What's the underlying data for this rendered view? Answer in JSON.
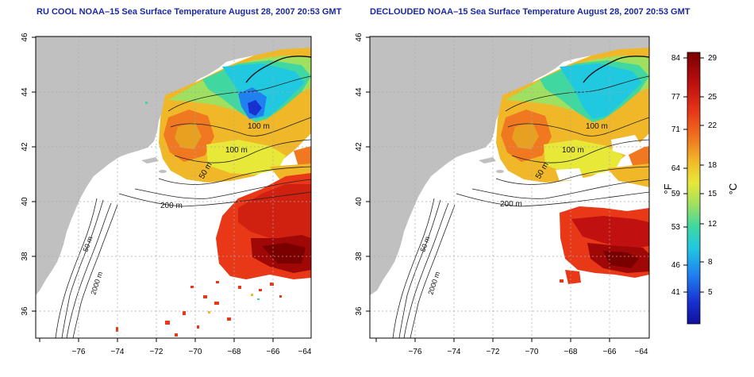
{
  "left_panel": {
    "title": "RU COOL NOAA–15 Sea Surface Temperature August 28, 2007 20:53 GMT"
  },
  "right_panel": {
    "title": "DECLOUDED NOAA–15 Sea Surface Temperature August 28, 2007 20:53 GMT"
  },
  "axes": {
    "x_ticks": [
      "−76",
      "−74",
      "−72",
      "−70",
      "−68",
      "−66",
      "−64"
    ],
    "y_ticks": [
      "36",
      "38",
      "40",
      "42",
      "44",
      "46"
    ]
  },
  "contours": {
    "labels": [
      "100 m",
      "100 m",
      "50 m",
      "200 m",
      "50 m",
      "2000 m"
    ]
  },
  "colorbar": {
    "f_label": "°F",
    "c_label": "°C",
    "f_ticks": [
      "84",
      "77",
      "71",
      "64",
      "59",
      "53",
      "46",
      "41"
    ],
    "c_ticks": [
      "29",
      "25",
      "22",
      "18",
      "15",
      "12",
      "8",
      "5"
    ],
    "colors": [
      "#7a0000",
      "#c01010",
      "#e83818",
      "#f07820",
      "#f0b828",
      "#e8e838",
      "#a0e060",
      "#40d8a0",
      "#20c8e0",
      "#2080f0",
      "#1830d0",
      "#10109a"
    ]
  },
  "colors": {
    "land": "#c0c0c0",
    "water": "#ffffff",
    "grid": "#a8a8a8",
    "title": "#1a2a9c"
  }
}
